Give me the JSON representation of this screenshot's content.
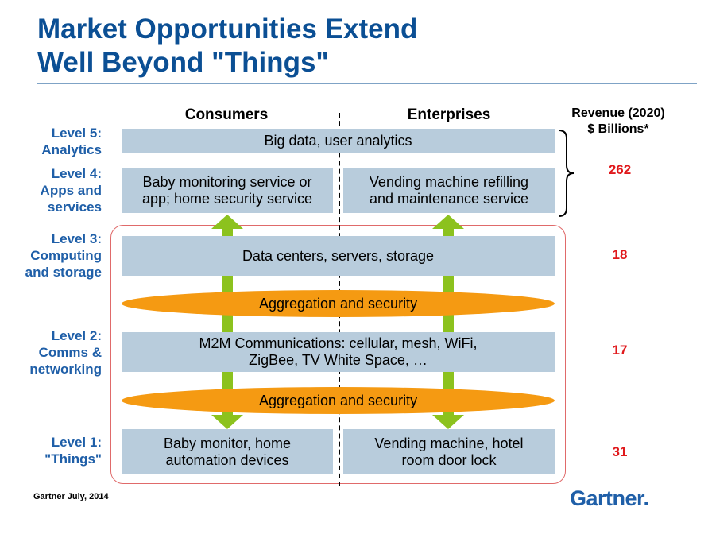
{
  "title": {
    "line1": "Market Opportunities Extend",
    "line2": "Well Beyond \"Things\""
  },
  "columns": {
    "consumers": "Consumers",
    "enterprises": "Enterprises"
  },
  "revenue_header": {
    "line1": "Revenue (2020)",
    "line2": "$ Billions*"
  },
  "levels": [
    {
      "line1": "Level 5:",
      "line2": "Analytics",
      "line3": ""
    },
    {
      "line1": "Level 4:",
      "line2": "Apps and",
      "line3": "services"
    },
    {
      "line1": "Level 3:",
      "line2": "Computing",
      "line3": "and storage"
    },
    {
      "line1": "Level 2:",
      "line2": "Comms &",
      "line3": "networking"
    },
    {
      "line1": "Level 1:",
      "line2": "\"Things\"",
      "line3": ""
    }
  ],
  "boxes": {
    "big_data": "Big data, user analytics",
    "baby_service": {
      "line1": "Baby monitoring service or",
      "line2": "app; home security service"
    },
    "vending_service": {
      "line1": "Vending machine refilling",
      "line2": "and maintenance service"
    },
    "data_centers": "Data centers, servers, storage",
    "m2m": {
      "line1": "M2M Communications: cellular, mesh, WiFi,",
      "line2": "ZigBee, TV White Space, …"
    },
    "baby_monitor": {
      "line1": "Baby monitor, home",
      "line2": "automation devices"
    },
    "vending_machine": {
      "line1": "Vending machine, hotel",
      "line2": "room door lock"
    }
  },
  "ovals": {
    "upper": "Aggregation and security",
    "lower": "Aggregation and security"
  },
  "revenue": {
    "apps_analytics": "262",
    "computing": "18",
    "comms": "17",
    "things": "31"
  },
  "footer": "Gartner July, 2014",
  "logo": {
    "text": "Gartner",
    "mark": "."
  },
  "colors": {
    "title": "#0b4f94",
    "level": "#1f5fa8",
    "box": "#b8ccdc",
    "oval": "#f59a12",
    "arrow": "#8cc21e",
    "revenue": "#e0191c",
    "frame": "#e06a6a"
  },
  "icons": {
    "arrows": "double-headed-arrow",
    "brace": "right-curly-brace"
  }
}
